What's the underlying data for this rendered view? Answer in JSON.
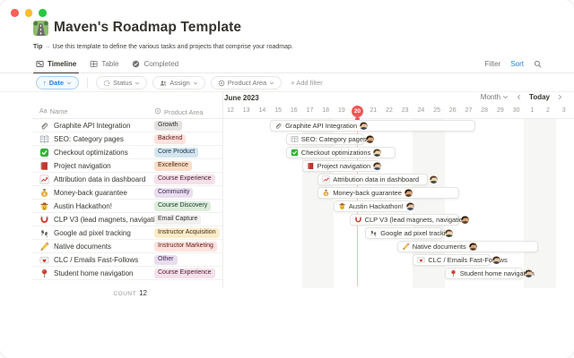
{
  "header": {
    "icon": "motorway-icon",
    "title": "Maven's Roadmap Template",
    "tip_label": "Tip",
    "tip_arrow": "→",
    "tip_text": "Use this template to define the various tasks and projects that comprise your roadmap."
  },
  "tabs": [
    {
      "label": "Timeline",
      "icon": "timeline-view-icon",
      "active": true
    },
    {
      "label": "Table",
      "icon": "table-view-icon",
      "active": false
    },
    {
      "label": "Completed",
      "icon": "completed-view-icon",
      "active": false
    }
  ],
  "top_actions": {
    "filter": "Filter",
    "sort": "Sort"
  },
  "filter_bar": {
    "sort_pill": {
      "arrow": "↑",
      "label": "Date"
    },
    "pills": [
      {
        "label": "Status",
        "icon": "status-property-icon"
      },
      {
        "label": "Assign",
        "icon": "person-property-icon"
      },
      {
        "label": "Product Area",
        "icon": "select-property-icon"
      }
    ],
    "add_filter": "+ Add filter"
  },
  "timeline": {
    "month_label": "June 2023",
    "zoom_label": "Month",
    "today_label": "Today",
    "days": [
      "12",
      "13",
      "14",
      "15",
      "16",
      "17",
      "18",
      "19",
      "20",
      "21",
      "22",
      "23",
      "24",
      "25",
      "26",
      "27",
      "28",
      "29",
      "30",
      "1",
      "2",
      "3"
    ],
    "today_index": 8,
    "weekend_indices": [
      5,
      6,
      12,
      13,
      19,
      20
    ]
  },
  "table": {
    "name_icon": "Aa",
    "name_header": "Name",
    "area_header": "Product Area",
    "count_label": "COUNT",
    "count_value": "12"
  },
  "tasks": [
    {
      "name": "Graphite API Integration",
      "icon": "paperclip-icon",
      "area": "Growth",
      "color": "gray",
      "start": 3,
      "end": 15,
      "avatar": "a",
      "avatar_inside": true
    },
    {
      "name": "SEO: Category pages",
      "icon": "open-book-icon",
      "area": "Backend",
      "color": "red",
      "start": 4,
      "end": 8,
      "avatar": "b",
      "avatar_inside": false
    },
    {
      "name": "Checkout optimizations",
      "icon": "check-icon",
      "area": "Core Product",
      "color": "blue",
      "start": 4,
      "end": 10,
      "avatar": "c",
      "avatar_inside": true
    },
    {
      "name": "Project navigation",
      "icon": "red-book-icon",
      "area": "Excellence",
      "color": "orange",
      "start": 5,
      "end": 9,
      "avatar": "a",
      "avatar_inside": true
    },
    {
      "name": "Attribution data in dashboard",
      "icon": "chart-increasing-icon",
      "area": "Course Experience",
      "color": "pink",
      "start": 6,
      "end": 12,
      "avatar": "c",
      "avatar_inside": false
    },
    {
      "name": "Money-back guarantee",
      "icon": "money-bag-icon",
      "area": "Community",
      "color": "purple",
      "start": 6,
      "end": 14,
      "avatar": "b",
      "avatar_inside": true
    },
    {
      "name": "Austin Hackathon!",
      "icon": "cowboy-hat-icon",
      "area": "Course Discovery",
      "color": "green",
      "start": 7,
      "end": 11,
      "avatar": "a",
      "avatar_inside": true
    },
    {
      "name": "CLP V3 (lead magnets, navigation)",
      "icon": "magnet-icon",
      "area": "Email Capture",
      "color": "lightgray",
      "start": 8,
      "end": 14,
      "avatar": "b",
      "avatar_inside": false
    },
    {
      "name": "Google ad pixel tracking",
      "icon": "footprints-icon",
      "area": "Instructor Acquisition",
      "color": "yellow",
      "start": 9,
      "end": 13,
      "avatar": "c",
      "avatar_inside": false
    },
    {
      "name": "Native documents",
      "icon": "pencil-icon",
      "area": "Instructor Marketing",
      "color": "red",
      "start": 11,
      "end": 19,
      "avatar": "b",
      "avatar_inside": true
    },
    {
      "name": "CLC / Emails Fast-Follows",
      "icon": "love-letter-icon",
      "area": "Other",
      "color": "purple",
      "start": 12,
      "end": 16,
      "avatar": "a",
      "avatar_inside": false
    },
    {
      "name": "Student home navigation",
      "icon": "round-pushpin-icon",
      "area": "Course Experience",
      "color": "pink",
      "start": 14,
      "end": 18,
      "avatar": "a",
      "avatar_inside": false
    }
  ],
  "colors": {
    "accent_blue": "#2383E2",
    "today_red": "#EB5757",
    "tag_palette": {
      "gray": {
        "bg": "#E3E2E0",
        "text": "#32302C"
      },
      "lightgray": {
        "bg": "#F1F0EF",
        "text": "#32302C"
      },
      "red": {
        "bg": "#FFE2DD",
        "text": "#5D1715"
      },
      "blue": {
        "bg": "#D3E5EF",
        "text": "#183347"
      },
      "orange": {
        "bg": "#FADEC9",
        "text": "#49290E"
      },
      "pink": {
        "bg": "#F5E0E9",
        "text": "#4C2337"
      },
      "purple": {
        "bg": "#E8DEEE",
        "text": "#412454"
      },
      "green": {
        "bg": "#DBEDDB",
        "text": "#1C3829"
      },
      "yellow": {
        "bg": "#FDECC8",
        "text": "#402C1B"
      }
    }
  }
}
